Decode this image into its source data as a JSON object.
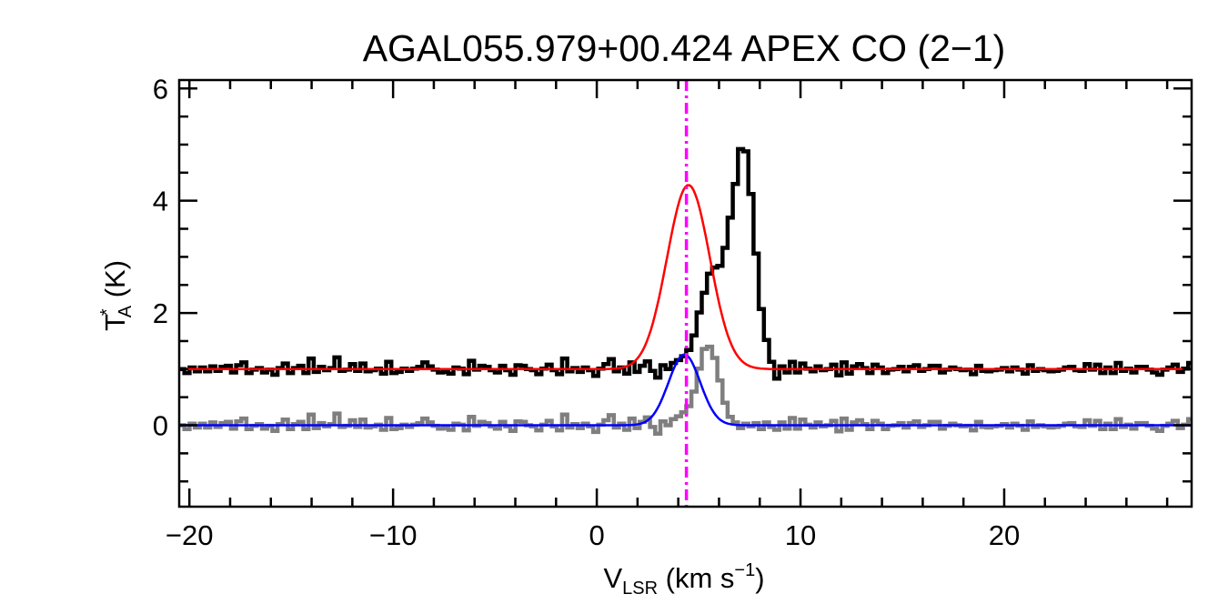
{
  "chart_data": {
    "type": "line",
    "title": "AGAL055.979+00.424  APEX CO (2−1)",
    "xlabel": {
      "main": "V",
      "sub": "LSR",
      "unit_prefix": " (km s",
      "sup": "−1",
      "unit_suffix": ")"
    },
    "ylabel": {
      "main": "T",
      "sup": "*",
      "sub": "A",
      "unit": " (K)"
    },
    "xlim": [
      -20.5,
      29.2
    ],
    "ylim": [
      -1.45,
      6.15
    ],
    "xticks": [
      {
        "value": -20,
        "label": "−20"
      },
      {
        "value": -10,
        "label": "−10"
      },
      {
        "value": 0,
        "label": "0"
      },
      {
        "value": 10,
        "label": "10"
      },
      {
        "value": 20,
        "label": "20"
      }
    ],
    "yticks": [
      {
        "value": 0,
        "label": "0"
      },
      {
        "value": 2,
        "label": "2"
      },
      {
        "value": 4,
        "label": "4"
      },
      {
        "value": 6,
        "label": "6"
      }
    ],
    "xminor_step": 2,
    "yminor_step": 0.5,
    "grid": false,
    "vline": {
      "x": 4.4,
      "color": "#ff00ff",
      "style": "dash-dot"
    },
    "series": [
      {
        "style": "histogram",
        "color": "#000000",
        "x_start": -20.5,
        "x_step": 0.254,
        "values": [
          1.0,
          0.93,
          1.03,
          0.96,
          1.03,
          0.96,
          1.05,
          0.97,
          1.04,
          1.06,
          0.94,
          1.07,
          1.12,
          0.93,
          0.99,
          1.02,
          0.94,
          0.99,
          0.9,
          1.02,
          1.1,
          0.93,
          1.02,
          1.06,
          0.93,
          1.19,
          0.95,
          1.04,
          0.98,
          1.02,
          1.21,
          0.97,
          0.99,
          1.09,
          0.97,
          1.1,
          0.96,
          0.98,
          1.01,
          0.92,
          1.13,
          0.93,
          0.95,
          1.01,
          0.97,
          1.01,
          1.04,
          1.12,
          1.05,
          0.99,
          0.94,
          0.95,
          0.92,
          1.03,
          1.01,
          0.91,
          1.15,
          0.99,
          1.06,
          1.04,
          0.98,
          0.94,
          1.06,
          0.98,
          0.9,
          1.07,
          1.06,
          1.0,
          0.98,
          0.91,
          1.01,
          1.08,
          0.98,
          0.91,
          1.19,
          0.96,
          1.02,
          0.95,
          1.03,
          0.98,
          0.88,
          1.01,
          1.09,
          1.18,
          0.96,
          1.03,
          0.92,
          1.12,
          0.95,
          1.06,
          1.14,
          0.97,
          0.85,
          1.07,
          1.0,
          1.11,
          1.16,
          1.23,
          1.34,
          1.6,
          2.01,
          2.36,
          2.7,
          2.81,
          2.84,
          3.16,
          3.7,
          4.3,
          4.92,
          4.88,
          4.12,
          3.06,
          2.07,
          1.52,
          1.13,
          0.83,
          1.05,
          0.94,
          1.13,
          0.94,
          1.1,
          1.01,
          0.96,
          1.05,
          0.98,
          1.0,
          1.08,
          0.89,
          1.12,
          0.92,
          1.05,
          1.09,
          1.02,
          0.93,
          1.08,
          1.03,
          0.93,
          0.99,
          1.0,
          1.04,
          0.96,
          1.04,
          1.07,
          0.97,
          1.0,
          1.06,
          1.06,
          0.94,
          0.99,
          1.03,
          1.0,
          0.98,
          0.99,
          0.91,
          1.06,
          0.97,
          0.96,
          0.98,
          0.99,
          1.02,
          0.96,
          1.03,
          0.99,
          0.92,
          1.07,
          0.97,
          1.0,
          0.98,
          0.96,
          0.97,
          0.99,
          1.03,
          1.04,
          0.98,
          0.97,
          1.09,
          0.99,
          1.08,
          0.93,
          1.03,
          0.93,
          1.11,
          0.97,
          1.01,
          0.94,
          1.04,
          1.04,
          0.99,
          0.94,
          0.9,
          0.99,
          1.03,
          1.08,
          0.95,
          1.01,
          1.11
        ]
      },
      {
        "style": "histogram",
        "color": "#7f7f7f",
        "x_start": -20.5,
        "x_step": 0.254,
        "values": [
          0.0,
          -0.07,
          0.03,
          -0.04,
          0.03,
          -0.04,
          0.05,
          -0.03,
          0.04,
          0.06,
          -0.06,
          0.07,
          0.12,
          -0.07,
          -0.01,
          0.02,
          -0.06,
          -0.01,
          -0.1,
          0.02,
          0.1,
          -0.07,
          0.02,
          0.06,
          -0.07,
          0.19,
          -0.05,
          0.04,
          -0.02,
          0.02,
          0.21,
          -0.03,
          -0.01,
          0.09,
          -0.03,
          0.1,
          -0.04,
          -0.02,
          0.01,
          -0.08,
          0.13,
          -0.07,
          -0.05,
          0.01,
          -0.03,
          0.01,
          0.04,
          0.12,
          0.05,
          -0.01,
          -0.06,
          -0.05,
          -0.08,
          0.03,
          0.01,
          -0.09,
          0.15,
          -0.01,
          0.06,
          0.04,
          -0.02,
          -0.06,
          0.06,
          -0.02,
          -0.1,
          0.07,
          0.06,
          0.0,
          -0.02,
          -0.09,
          0.01,
          0.08,
          -0.02,
          -0.09,
          0.19,
          -0.04,
          0.02,
          -0.05,
          0.03,
          -0.02,
          -0.12,
          0.01,
          0.09,
          0.18,
          -0.04,
          0.03,
          -0.08,
          0.12,
          -0.05,
          0.06,
          0.14,
          -0.03,
          -0.15,
          0.07,
          0.0,
          0.11,
          0.16,
          0.23,
          0.34,
          0.6,
          1.01,
          1.36,
          1.4,
          1.2,
          0.8,
          0.4,
          0.15,
          0.05,
          -0.05,
          0.03,
          -0.02,
          0.04,
          -0.07,
          0.05,
          -0.03,
          -0.08,
          0.05,
          -0.06,
          0.13,
          -0.06,
          0.1,
          0.01,
          -0.04,
          0.05,
          -0.02,
          0.0,
          0.08,
          -0.11,
          0.12,
          -0.08,
          0.05,
          0.09,
          0.02,
          -0.07,
          0.08,
          0.03,
          -0.07,
          -0.01,
          0.0,
          0.04,
          -0.04,
          0.04,
          0.07,
          -0.03,
          0.0,
          0.06,
          0.06,
          -0.06,
          -0.01,
          0.03,
          0.0,
          -0.02,
          -0.01,
          -0.09,
          0.06,
          -0.03,
          -0.04,
          -0.02,
          -0.01,
          0.02,
          -0.04,
          0.03,
          -0.01,
          -0.08,
          0.07,
          -0.03,
          0.0,
          -0.02,
          -0.04,
          -0.03,
          -0.01,
          0.03,
          0.04,
          -0.02,
          -0.03,
          0.09,
          -0.01,
          0.08,
          -0.07,
          0.03,
          -0.07,
          0.11,
          -0.03,
          0.01,
          -0.06,
          0.04,
          0.04,
          -0.01,
          -0.06,
          -0.1,
          -0.01,
          0.03,
          0.08,
          -0.05,
          0.01,
          0.11
        ]
      },
      {
        "style": "gaussian",
        "color": "#ff0000",
        "baseline": 1.0,
        "amplitude": 3.28,
        "center": 4.5,
        "sigma": 1.05
      },
      {
        "style": "gaussian",
        "color": "#0000ff",
        "baseline": 0.0,
        "amplitude": 1.26,
        "center": 4.3,
        "sigma": 0.78
      }
    ]
  }
}
